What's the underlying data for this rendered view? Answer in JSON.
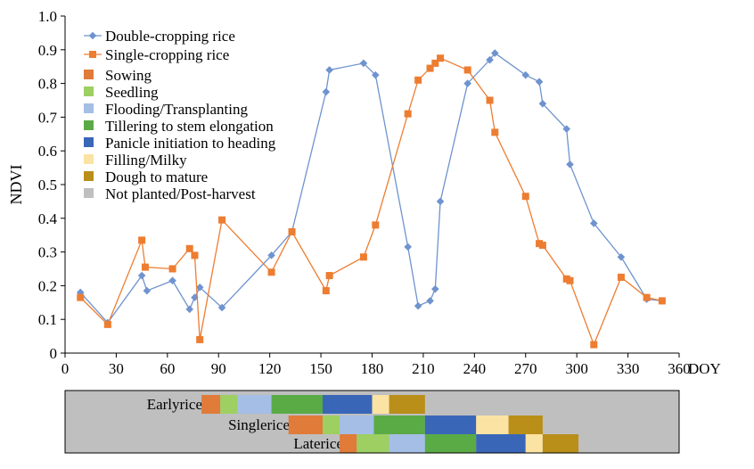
{
  "chart_data": {
    "type": "line",
    "ylabel": "NDVI",
    "xlabel": "DOY",
    "xlim": [
      0,
      360
    ],
    "ylim": [
      0,
      1.0
    ],
    "xticks": [
      0,
      30,
      60,
      90,
      120,
      150,
      180,
      210,
      240,
      270,
      300,
      330,
      360
    ],
    "xtick_labels": [
      "0",
      "30",
      "60",
      "90",
      "120",
      "150",
      "180",
      "210",
      "240",
      "270",
      "300",
      "330",
      "360"
    ],
    "yticks": [
      0,
      0.1,
      0.2,
      0.3,
      0.4,
      0.5,
      0.6,
      0.7,
      0.8,
      0.9,
      1.0
    ],
    "ytick_labels": [
      "0",
      "0.1",
      "0.2",
      "0.3",
      "0.4",
      "0.5",
      "0.6",
      "0.7",
      "0.8",
      "0.9",
      "1.0"
    ],
    "grid": false,
    "legend_position": "top-left",
    "series": [
      {
        "name": "Double-cropping rice",
        "color": "#6f93cf",
        "marker": "diamond",
        "x": [
          9,
          25,
          45,
          48,
          63,
          73,
          76,
          79,
          92,
          121,
          133,
          153,
          155,
          175,
          182,
          201,
          207,
          214,
          217,
          220,
          236,
          249,
          252,
          270,
          278,
          280,
          294,
          296,
          310,
          326,
          341,
          350
        ],
        "y": [
          0.18,
          0.09,
          0.23,
          0.185,
          0.215,
          0.13,
          0.165,
          0.195,
          0.135,
          0.29,
          0.36,
          0.775,
          0.84,
          0.86,
          0.825,
          0.315,
          0.14,
          0.155,
          0.19,
          0.45,
          0.8,
          0.87,
          0.89,
          0.825,
          0.805,
          0.74,
          0.665,
          0.56,
          0.385,
          0.285,
          0.16,
          0.155
        ]
      },
      {
        "name": "Single-cropping rice",
        "color": "#ed7d31",
        "marker": "square",
        "x": [
          9,
          25,
          45,
          47,
          63,
          73,
          76,
          79,
          92,
          121,
          133,
          153,
          155,
          175,
          182,
          201,
          207,
          214,
          217,
          220,
          236,
          249,
          252,
          270,
          278,
          280,
          294,
          296,
          310,
          326,
          341,
          350
        ],
        "y": [
          0.165,
          0.085,
          0.335,
          0.255,
          0.25,
          0.31,
          0.29,
          0.04,
          0.395,
          0.24,
          0.36,
          0.185,
          0.23,
          0.285,
          0.38,
          0.71,
          0.81,
          0.845,
          0.86,
          0.875,
          0.84,
          0.75,
          0.655,
          0.465,
          0.325,
          0.32,
          0.22,
          0.215,
          0.025,
          0.225,
          0.165,
          0.155
        ]
      }
    ],
    "stage_legend": [
      {
        "name": "Sowing",
        "color": "#e07b39"
      },
      {
        "name": "Seedling",
        "color": "#9dcf62"
      },
      {
        "name": "Flooding/Transplanting",
        "color": "#a4bee5"
      },
      {
        "name": "Tillering to stem elongation",
        "color": "#5aab45"
      },
      {
        "name": "Panicle initiation to heading",
        "color": "#3a66b8"
      },
      {
        "name": "Filling/Milky",
        "color": "#fbe3a4"
      },
      {
        "name": "Dough to mature",
        "color": "#b98f1a"
      },
      {
        "name": "Not planted/Post-harvest",
        "color": "#bfbfbf"
      }
    ],
    "phenology": [
      {
        "label": "Earlyrice",
        "stages": [
          {
            "stage": "Sowing",
            "start": 80,
            "end": 91
          },
          {
            "stage": "Seedling",
            "start": 91,
            "end": 101
          },
          {
            "stage": "Flooding/Transplanting",
            "start": 101,
            "end": 121
          },
          {
            "stage": "Tillering to stem elongation",
            "start": 121,
            "end": 151
          },
          {
            "stage": "Panicle initiation to heading",
            "start": 151,
            "end": 180
          },
          {
            "stage": "Filling/Milky",
            "start": 180,
            "end": 190
          },
          {
            "stage": "Dough to mature",
            "start": 190,
            "end": 211
          }
        ]
      },
      {
        "label": "Singlerice",
        "stages": [
          {
            "stage": "Sowing",
            "start": 131,
            "end": 151
          },
          {
            "stage": "Seedling",
            "start": 151,
            "end": 161
          },
          {
            "stage": "Flooding/Transplanting",
            "start": 161,
            "end": 181
          },
          {
            "stage": "Tillering to stem elongation",
            "start": 181,
            "end": 211
          },
          {
            "stage": "Panicle initiation to heading",
            "start": 211,
            "end": 241
          },
          {
            "stage": "Filling/Milky",
            "start": 241,
            "end": 260
          },
          {
            "stage": "Dough to mature",
            "start": 260,
            "end": 280
          }
        ]
      },
      {
        "label": "Laterice",
        "stages": [
          {
            "stage": "Sowing",
            "start": 161,
            "end": 171
          },
          {
            "stage": "Seedling",
            "start": 171,
            "end": 190
          },
          {
            "stage": "Flooding/Transplanting",
            "start": 190,
            "end": 211
          },
          {
            "stage": "Tillering to stem elongation",
            "start": 211,
            "end": 241
          },
          {
            "stage": "Panicle initiation to heading",
            "start": 241,
            "end": 270
          },
          {
            "stage": "Filling/Milky",
            "start": 270,
            "end": 280
          },
          {
            "stage": "Dough to mature",
            "start": 280,
            "end": 301
          }
        ]
      }
    ]
  }
}
